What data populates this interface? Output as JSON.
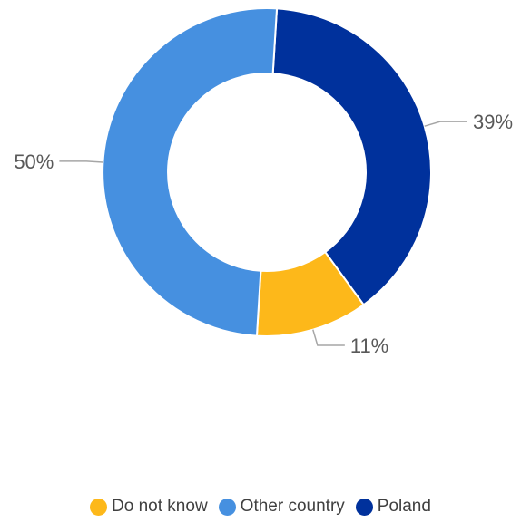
{
  "chart_data": {
    "type": "pie",
    "donut": true,
    "start_series_at_top": "Poland",
    "categories": [
      "Poland",
      "Do not know",
      "Other country"
    ],
    "values": [
      39,
      11,
      50
    ],
    "labels": [
      "39%",
      "11%",
      "50%"
    ],
    "colors": [
      "#00319C",
      "#FDB81A",
      "#4690E0"
    ],
    "legend_position": "bottom",
    "legend": [
      {
        "label": "Do not know",
        "color": "#FDB81A"
      },
      {
        "label": "Other country",
        "color": "#4690E0"
      },
      {
        "label": "Poland",
        "color": "#00319C"
      }
    ]
  }
}
